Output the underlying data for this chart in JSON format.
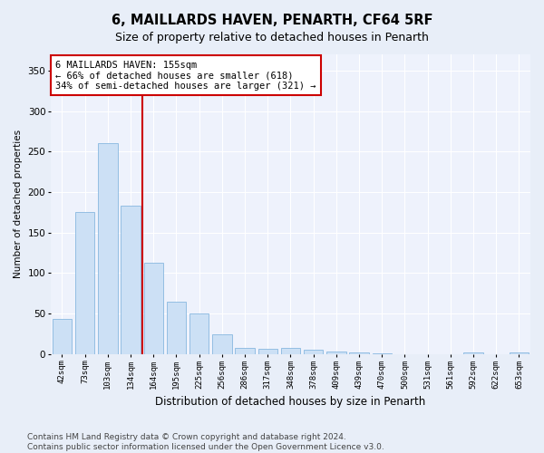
{
  "title": "6, MAILLARDS HAVEN, PENARTH, CF64 5RF",
  "subtitle": "Size of property relative to detached houses in Penarth",
  "xlabel": "Distribution of detached houses by size in Penarth",
  "ylabel": "Number of detached properties",
  "categories": [
    "42sqm",
    "73sqm",
    "103sqm",
    "134sqm",
    "164sqm",
    "195sqm",
    "225sqm",
    "256sqm",
    "286sqm",
    "317sqm",
    "348sqm",
    "378sqm",
    "409sqm",
    "439sqm",
    "470sqm",
    "500sqm",
    "531sqm",
    "561sqm",
    "592sqm",
    "622sqm",
    "653sqm"
  ],
  "values": [
    44,
    175,
    260,
    183,
    113,
    65,
    50,
    25,
    8,
    6,
    8,
    5,
    3,
    2,
    1,
    0,
    0,
    0,
    2,
    0,
    2
  ],
  "bar_color": "#cce0f5",
  "bar_edge_color": "#88b8e0",
  "vline_color": "#cc0000",
  "vline_index": 3.5,
  "annotation_text": "6 MAILLARDS HAVEN: 155sqm\n← 66% of detached houses are smaller (618)\n34% of semi-detached houses are larger (321) →",
  "annotation_box_facecolor": "#ffffff",
  "annotation_box_edgecolor": "#cc0000",
  "ylim": [
    0,
    370
  ],
  "yticks": [
    0,
    50,
    100,
    150,
    200,
    250,
    300,
    350
  ],
  "figure_facecolor": "#e8eef8",
  "axes_facecolor": "#eef2fc",
  "grid_color": "#ffffff",
  "footer": "Contains HM Land Registry data © Crown copyright and database right 2024.\nContains public sector information licensed under the Open Government Licence v3.0.",
  "title_fontsize": 10.5,
  "subtitle_fontsize": 9,
  "ylabel_fontsize": 7.5,
  "xlabel_fontsize": 8.5,
  "tick_fontsize": 6.5,
  "ytick_fontsize": 7.5,
  "annotation_fontsize": 7.5,
  "footer_fontsize": 6.5
}
